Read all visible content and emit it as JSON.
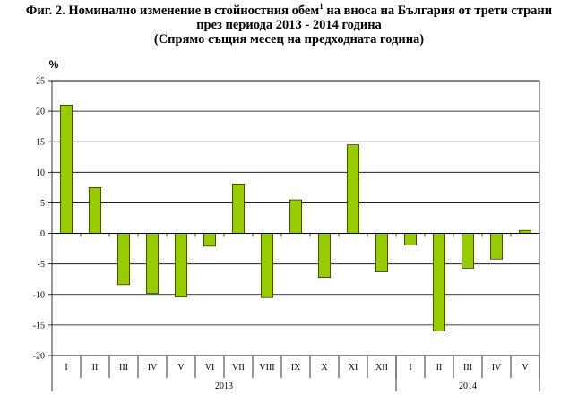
{
  "title": {
    "line1_pre": "Фиг. 2. Номинално изменение в стойностния обем",
    "line1_sup": "1",
    "line1_post": " на вноса на България от трети страни",
    "line2": "през периода 2013 - 2014 година",
    "line3": "(Спрямо същия месец на предходната година)"
  },
  "chart_data": {
    "type": "bar",
    "unit_label": "%",
    "categories": [
      "I",
      "II",
      "III",
      "IV",
      "V",
      "VI",
      "VII",
      "VIII",
      "IX",
      "X",
      "XI",
      "XII",
      "I",
      "II",
      "III",
      "IV",
      "V"
    ],
    "groups": [
      {
        "label": "2013",
        "count": 12
      },
      {
        "label": "2014",
        "count": 5
      }
    ],
    "values": [
      21.0,
      7.5,
      -8.4,
      -9.8,
      -10.4,
      -2.1,
      8.1,
      -10.5,
      5.5,
      -7.2,
      14.5,
      -6.3,
      -1.9,
      -16.0,
      -5.7,
      -4.2,
      0.5
    ],
    "ylim": [
      -20,
      25
    ],
    "yticks": [
      -20,
      -15,
      -10,
      -5,
      0,
      5,
      10,
      15,
      20,
      25
    ],
    "grid": true,
    "colors": {
      "bar": "#99cc00",
      "bar_stroke": "#000000",
      "grid": "#000000"
    }
  }
}
